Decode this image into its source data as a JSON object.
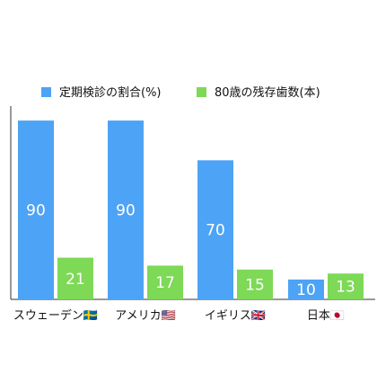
{
  "chart_data": {
    "type": "bar",
    "categories": [
      "スウェーデン🇸🇪",
      "アメリカ🇺🇸",
      "イギリス🇬🇧",
      "日本🇯🇵"
    ],
    "series": [
      {
        "name": "定期検診の割合(%)",
        "values": [
          90,
          90,
          70,
          10
        ],
        "color": "#4da3f5"
      },
      {
        "name": "80歳の残存歯数(本)",
        "values": [
          21,
          17,
          15,
          13
        ],
        "color": "#7ed957"
      }
    ],
    "ylim": [
      0,
      100
    ],
    "grid": false,
    "data_labels": true,
    "legend_position": "top"
  }
}
